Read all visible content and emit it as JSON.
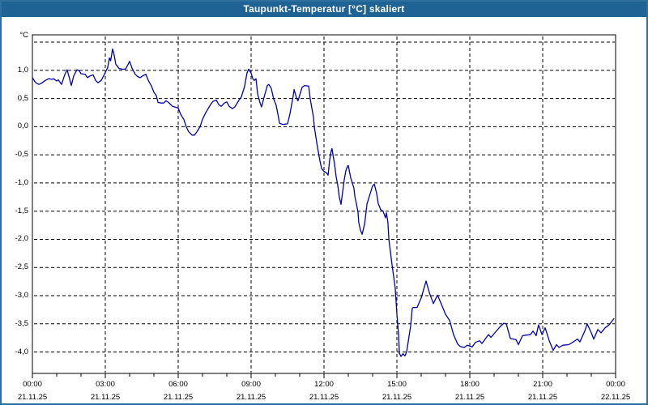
{
  "window": {
    "title": "Taupunkt-Temperatur [°C] skaliert"
  },
  "colors": {
    "titlebar": "#1f6394",
    "title_text": "#ffffff",
    "window_border": "#2e6f9e",
    "plot_background": "#ffffff",
    "grid": "#000000",
    "axis": "#000000",
    "line": "#0000ad",
    "label_text": "#000000"
  },
  "chart_data": {
    "type": "line",
    "title": "Taupunkt-Temperatur [°C] skaliert",
    "ylabel": "°C",
    "xlabel": "",
    "grid": "dashed",
    "legend": "none",
    "xlim": [
      0,
      24
    ],
    "ylim": [
      -4.38,
      1.63
    ],
    "x_minor_step_hours": 1,
    "x_major": [
      {
        "h": 0,
        "time": "00:00",
        "date": "21.11.25"
      },
      {
        "h": 3,
        "time": "03:00",
        "date": "21.11.25"
      },
      {
        "h": 6,
        "time": "06:00",
        "date": "21.11.25"
      },
      {
        "h": 9,
        "time": "09:00",
        "date": "21.11.25"
      },
      {
        "h": 12,
        "time": "12:00",
        "date": "21.11.25"
      },
      {
        "h": 15,
        "time": "15:00",
        "date": "21.11.25"
      },
      {
        "h": 18,
        "time": "18:00",
        "date": "21.11.25"
      },
      {
        "h": 21,
        "time": "21:00",
        "date": "21.11.25"
      },
      {
        "h": 24,
        "time": "00:00",
        "date": "22.11.25"
      }
    ],
    "y_gridlines": [
      1.5,
      1.0,
      0.5,
      0.0,
      -0.5,
      -1.0,
      -1.5,
      -2.0,
      -2.5,
      -3.0,
      -3.5,
      -4.0
    ],
    "y_tick_labels": [
      {
        "v": 1.0,
        "label": "1,0"
      },
      {
        "v": 0.5,
        "label": "0,5"
      },
      {
        "v": 0.0,
        "label": "0,0"
      },
      {
        "v": -0.5,
        "label": "-0,5"
      },
      {
        "v": -1.0,
        "label": "-1,0"
      },
      {
        "v": -1.5,
        "label": "-1,5"
      },
      {
        "v": -2.0,
        "label": "-2,0"
      },
      {
        "v": -2.5,
        "label": "-2,5"
      },
      {
        "v": -3.0,
        "label": "-3,0"
      },
      {
        "v": -3.5,
        "label": "-3,5"
      },
      {
        "v": -4.0,
        "label": "-4,0"
      }
    ],
    "series": [
      {
        "name": "Taupunkt-Temperatur",
        "color": "#0000ad",
        "points": [
          [
            0.0,
            0.87
          ],
          [
            0.1,
            0.8
          ],
          [
            0.17,
            0.77
          ],
          [
            0.27,
            0.75
          ],
          [
            0.37,
            0.77
          ],
          [
            0.53,
            0.82
          ],
          [
            0.67,
            0.85
          ],
          [
            0.8,
            0.84
          ],
          [
            0.87,
            0.85
          ],
          [
            1.0,
            0.81
          ],
          [
            1.07,
            0.83
          ],
          [
            1.2,
            0.75
          ],
          [
            1.33,
            0.92
          ],
          [
            1.43,
            1.01
          ],
          [
            1.53,
            0.85
          ],
          [
            1.6,
            0.73
          ],
          [
            1.7,
            0.9
          ],
          [
            1.83,
            1.01
          ],
          [
            1.93,
            0.99
          ],
          [
            2.0,
            0.94
          ],
          [
            2.17,
            0.93
          ],
          [
            2.27,
            0.87
          ],
          [
            2.37,
            0.9
          ],
          [
            2.5,
            0.92
          ],
          [
            2.6,
            0.82
          ],
          [
            2.7,
            0.78
          ],
          [
            2.83,
            0.82
          ],
          [
            2.93,
            0.9
          ],
          [
            3.1,
            1.05
          ],
          [
            3.17,
            1.22
          ],
          [
            3.22,
            1.17
          ],
          [
            3.3,
            1.38
          ],
          [
            3.37,
            1.26
          ],
          [
            3.43,
            1.11
          ],
          [
            3.57,
            1.03
          ],
          [
            3.7,
            1.02
          ],
          [
            3.83,
            1.02
          ],
          [
            3.93,
            1.1
          ],
          [
            4.0,
            1.16
          ],
          [
            4.1,
            1.04
          ],
          [
            4.23,
            0.93
          ],
          [
            4.33,
            0.89
          ],
          [
            4.43,
            0.87
          ],
          [
            4.57,
            0.91
          ],
          [
            4.67,
            0.93
          ],
          [
            4.77,
            0.82
          ],
          [
            4.9,
            0.72
          ],
          [
            5.0,
            0.61
          ],
          [
            5.1,
            0.55
          ],
          [
            5.17,
            0.43
          ],
          [
            5.3,
            0.42
          ],
          [
            5.4,
            0.42
          ],
          [
            5.5,
            0.46
          ],
          [
            5.6,
            0.43
          ],
          [
            5.77,
            0.36
          ],
          [
            5.93,
            0.34
          ],
          [
            6.0,
            0.33
          ],
          [
            6.1,
            0.22
          ],
          [
            6.23,
            0.13
          ],
          [
            6.33,
            0.0
          ],
          [
            6.43,
            -0.09
          ],
          [
            6.57,
            -0.15
          ],
          [
            6.67,
            -0.15
          ],
          [
            6.77,
            -0.09
          ],
          [
            6.9,
            0.0
          ],
          [
            7.0,
            0.13
          ],
          [
            7.1,
            0.22
          ],
          [
            7.23,
            0.32
          ],
          [
            7.33,
            0.39
          ],
          [
            7.43,
            0.45
          ],
          [
            7.57,
            0.47
          ],
          [
            7.67,
            0.39
          ],
          [
            7.77,
            0.36
          ],
          [
            7.9,
            0.42
          ],
          [
            8.0,
            0.44
          ],
          [
            8.1,
            0.36
          ],
          [
            8.23,
            0.32
          ],
          [
            8.33,
            0.35
          ],
          [
            8.5,
            0.47
          ],
          [
            8.6,
            0.53
          ],
          [
            8.73,
            0.71
          ],
          [
            8.83,
            0.95
          ],
          [
            8.9,
            1.02
          ],
          [
            9.0,
            0.95
          ],
          [
            9.07,
            0.85
          ],
          [
            9.13,
            0.82
          ],
          [
            9.2,
            0.85
          ],
          [
            9.27,
            0.58
          ],
          [
            9.37,
            0.42
          ],
          [
            9.43,
            0.35
          ],
          [
            9.57,
            0.58
          ],
          [
            9.67,
            0.73
          ],
          [
            9.73,
            0.75
          ],
          [
            9.83,
            0.68
          ],
          [
            9.93,
            0.49
          ],
          [
            10.03,
            0.38
          ],
          [
            10.1,
            0.23
          ],
          [
            10.17,
            0.06
          ],
          [
            10.3,
            0.04
          ],
          [
            10.5,
            0.05
          ],
          [
            10.6,
            0.23
          ],
          [
            10.73,
            0.54
          ],
          [
            10.77,
            0.66
          ],
          [
            10.87,
            0.51
          ],
          [
            10.93,
            0.46
          ],
          [
            11.1,
            0.7
          ],
          [
            11.2,
            0.73
          ],
          [
            11.37,
            0.72
          ],
          [
            11.43,
            0.5
          ],
          [
            11.57,
            0.16
          ],
          [
            11.6,
            0.0
          ],
          [
            11.73,
            -0.36
          ],
          [
            11.83,
            -0.6
          ],
          [
            11.9,
            -0.74
          ],
          [
            11.97,
            -0.78
          ],
          [
            12.03,
            -0.8
          ],
          [
            12.1,
            -0.82
          ],
          [
            12.17,
            -0.86
          ],
          [
            12.23,
            -0.6
          ],
          [
            12.3,
            -0.42
          ],
          [
            12.33,
            -0.39
          ],
          [
            12.37,
            -0.5
          ],
          [
            12.43,
            -0.65
          ],
          [
            12.5,
            -0.89
          ],
          [
            12.57,
            -1.05
          ],
          [
            12.63,
            -1.25
          ],
          [
            12.7,
            -1.38
          ],
          [
            12.77,
            -1.15
          ],
          [
            12.83,
            -0.95
          ],
          [
            12.9,
            -0.78
          ],
          [
            12.97,
            -0.7
          ],
          [
            13.0,
            -0.69
          ],
          [
            13.1,
            -0.91
          ],
          [
            13.23,
            -1.09
          ],
          [
            13.27,
            -1.24
          ],
          [
            13.33,
            -1.36
          ],
          [
            13.4,
            -1.52
          ],
          [
            13.43,
            -1.7
          ],
          [
            13.5,
            -1.84
          ],
          [
            13.57,
            -1.91
          ],
          [
            13.67,
            -1.73
          ],
          [
            13.73,
            -1.52
          ],
          [
            13.77,
            -1.37
          ],
          [
            13.9,
            -1.19
          ],
          [
            14.0,
            -1.05
          ],
          [
            14.07,
            -1.02
          ],
          [
            14.17,
            -1.19
          ],
          [
            14.23,
            -1.36
          ],
          [
            14.33,
            -1.47
          ],
          [
            14.43,
            -1.5
          ],
          [
            14.53,
            -1.62
          ],
          [
            14.57,
            -1.53
          ],
          [
            14.63,
            -1.7
          ],
          [
            14.67,
            -2.0
          ],
          [
            14.8,
            -2.45
          ],
          [
            14.93,
            -2.86
          ],
          [
            15.0,
            -3.33
          ],
          [
            15.07,
            -3.7
          ],
          [
            15.1,
            -4.02
          ],
          [
            15.17,
            -4.08
          ],
          [
            15.25,
            -4.03
          ],
          [
            15.33,
            -4.07
          ],
          [
            15.4,
            -4.0
          ],
          [
            15.5,
            -3.72
          ],
          [
            15.57,
            -3.52
          ],
          [
            15.63,
            -3.23
          ],
          [
            15.67,
            -3.21
          ],
          [
            15.83,
            -3.21
          ],
          [
            16.0,
            -3.04
          ],
          [
            16.2,
            -2.74
          ],
          [
            16.33,
            -2.94
          ],
          [
            16.5,
            -3.14
          ],
          [
            16.67,
            -2.99
          ],
          [
            16.83,
            -3.15
          ],
          [
            17.0,
            -3.33
          ],
          [
            17.17,
            -3.44
          ],
          [
            17.33,
            -3.69
          ],
          [
            17.5,
            -3.86
          ],
          [
            17.6,
            -3.9
          ],
          [
            17.77,
            -3.92
          ],
          [
            17.9,
            -3.88
          ],
          [
            18.1,
            -3.91
          ],
          [
            18.23,
            -3.83
          ],
          [
            18.4,
            -3.8
          ],
          [
            18.5,
            -3.85
          ],
          [
            18.77,
            -3.69
          ],
          [
            18.87,
            -3.74
          ],
          [
            19.07,
            -3.64
          ],
          [
            19.27,
            -3.54
          ],
          [
            19.4,
            -3.49
          ],
          [
            19.5,
            -3.5
          ],
          [
            19.67,
            -3.76
          ],
          [
            19.9,
            -3.78
          ],
          [
            20.0,
            -3.87
          ],
          [
            20.17,
            -3.71
          ],
          [
            20.33,
            -3.7
          ],
          [
            20.5,
            -3.69
          ],
          [
            20.6,
            -3.63
          ],
          [
            20.73,
            -3.71
          ],
          [
            20.83,
            -3.52
          ],
          [
            20.97,
            -3.69
          ],
          [
            21.1,
            -3.57
          ],
          [
            21.27,
            -3.8
          ],
          [
            21.43,
            -3.97
          ],
          [
            21.57,
            -3.87
          ],
          [
            21.67,
            -3.92
          ],
          [
            21.83,
            -3.88
          ],
          [
            22.07,
            -3.87
          ],
          [
            22.23,
            -3.83
          ],
          [
            22.43,
            -3.77
          ],
          [
            22.53,
            -3.82
          ],
          [
            22.73,
            -3.63
          ],
          [
            22.83,
            -3.5
          ],
          [
            23.0,
            -3.66
          ],
          [
            23.1,
            -3.77
          ],
          [
            23.27,
            -3.6
          ],
          [
            23.4,
            -3.66
          ],
          [
            23.57,
            -3.57
          ],
          [
            23.73,
            -3.52
          ],
          [
            23.93,
            -3.41
          ]
        ]
      }
    ]
  }
}
